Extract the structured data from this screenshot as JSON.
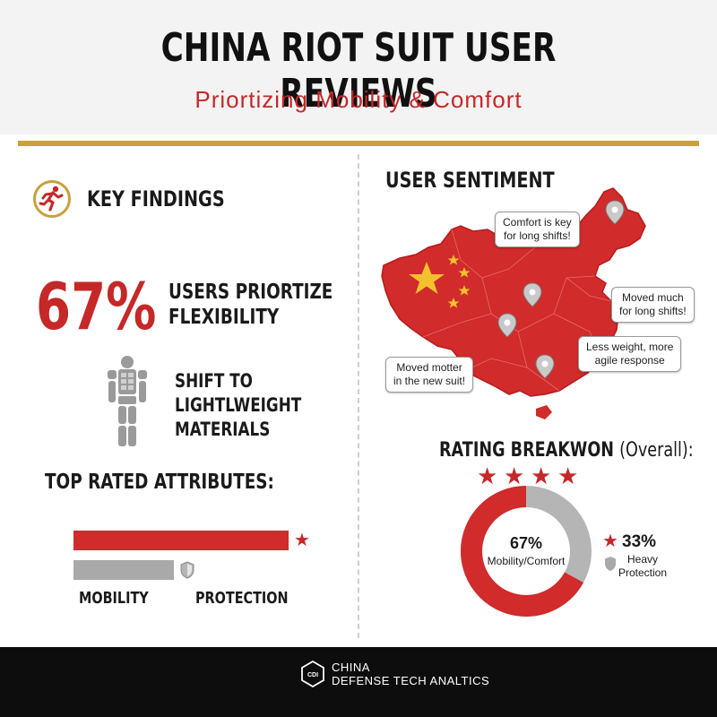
{
  "header": {
    "title": "CHINA RIOT SUIT USER REVIEWS",
    "subtitle": "Priortizing Mobility & Comfort"
  },
  "key_findings": {
    "icon": "running-person-icon",
    "title": "KEY FINDINGS",
    "stat_value": "67%",
    "stat_label_line1": "USERS PRIORTIZE",
    "stat_label_line2": "FLEXIBILITY",
    "shift_icon": "body-armor-icon",
    "shift_line1": "SHIFT TO",
    "shift_line2": "LIGHTLWEIGHT",
    "shift_line3": "MATERIALS"
  },
  "attributes": {
    "title": "TOP RATED ATTRIBUTES:",
    "bars": [
      {
        "label": "MOBILITY",
        "value": 1.0,
        "color": "#d12b2b",
        "icon": "star-icon"
      },
      {
        "label": "PROTECTION",
        "value": 0.47,
        "color": "#a9a9a9",
        "icon": "shield-icon"
      }
    ]
  },
  "sentiment": {
    "title": "USER SENTIMENT",
    "map_color": "#d12b2b",
    "bubbles": [
      {
        "line1": "Comfort is key",
        "line2": "for long shifts!"
      },
      {
        "line1": "Moved much",
        "line2": "for long shifts!"
      },
      {
        "line1": "Less weight, more",
        "line2": "agile response"
      },
      {
        "line1": "Moved motter",
        "line2": "in the new suit!"
      }
    ]
  },
  "rating": {
    "title": "RATING BREAKWON",
    "title_suffix": "(Overall):",
    "stars": 4,
    "primary_pct": "67%",
    "primary_label": "Mobility/Comfort",
    "secondary_pct": "33%",
    "secondary_label_line1": "Heavy",
    "secondary_label_line2": "Protection",
    "colors": {
      "primary": "#d12b2b",
      "secondary": "#b5b5b5"
    }
  },
  "footer": {
    "logo_text": "CDI",
    "line1": "CHINA",
    "line2": "DEFENSE TECH ANALTICS"
  }
}
